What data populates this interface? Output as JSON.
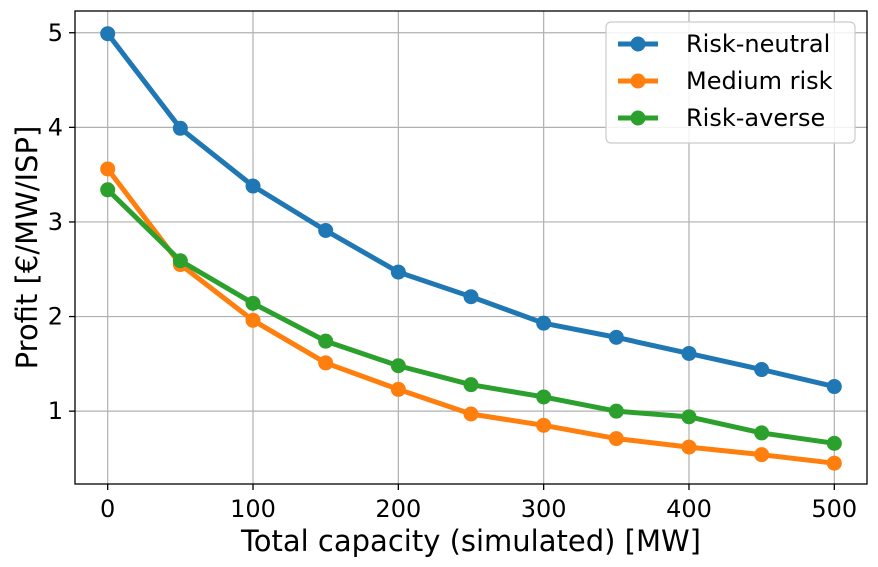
{
  "chart_data": {
    "type": "line",
    "title": "",
    "xlabel": "Total capacity (simulated) [MW]",
    "ylabel": "Profit [€/MW/ISP]",
    "x": [
      0,
      50,
      100,
      150,
      200,
      250,
      300,
      350,
      400,
      450,
      500
    ],
    "xlim": [
      -22.5,
      522.5
    ],
    "ylim": [
      0.23,
      5.23
    ],
    "xticks": [
      0,
      100,
      200,
      300,
      400,
      500
    ],
    "yticks": [
      1,
      2,
      3,
      4,
      5
    ],
    "grid": true,
    "legend_position": "top-right",
    "series": [
      {
        "name": "Risk-neutral",
        "color": "#1f77b4",
        "values": [
          4.99,
          3.99,
          3.38,
          2.91,
          2.47,
          2.21,
          1.93,
          1.78,
          1.61,
          1.44,
          1.26
        ]
      },
      {
        "name": "Medium risk",
        "color": "#ff7f0e",
        "values": [
          3.56,
          2.55,
          1.96,
          1.51,
          1.23,
          0.97,
          0.85,
          0.71,
          0.62,
          0.54,
          0.45
        ]
      },
      {
        "name": "Risk-averse",
        "color": "#2ca02c",
        "values": [
          3.34,
          2.59,
          2.14,
          1.74,
          1.48,
          1.28,
          1.15,
          1.0,
          0.94,
          0.77,
          0.66
        ]
      }
    ]
  }
}
